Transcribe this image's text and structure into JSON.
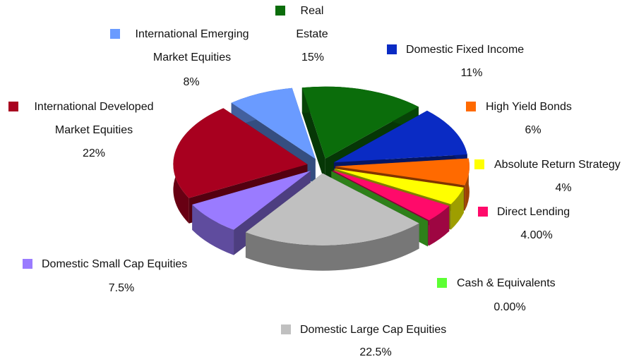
{
  "chart_data": {
    "type": "pie",
    "categories": [
      "Real Estate",
      "Domestic Fixed Income",
      "High Yield Bonds",
      "Absolute Return Strategy",
      "Direct Lending",
      "Cash & Equivalents",
      "Domestic Large Cap Equities",
      "Domestic Small Cap Equities",
      "International Developed Market Equities",
      "International Emerging Market Equities"
    ],
    "values": [
      15,
      11,
      6,
      4,
      4,
      0,
      22.5,
      7.5,
      22,
      8
    ],
    "value_labels": [
      "15%",
      "11%",
      "6%",
      "4%",
      "4.00%",
      "0.00%",
      "22.5%",
      "7.5%",
      "22%",
      "8%"
    ],
    "colors": [
      "#0b6d0b",
      "#0a2bc4",
      "#ff6a00",
      "#ffff00",
      "#ff0a6a",
      "#5cff33",
      "#c0c0c0",
      "#9a7bff",
      "#a8001f",
      "#6a9bff"
    ]
  }
}
